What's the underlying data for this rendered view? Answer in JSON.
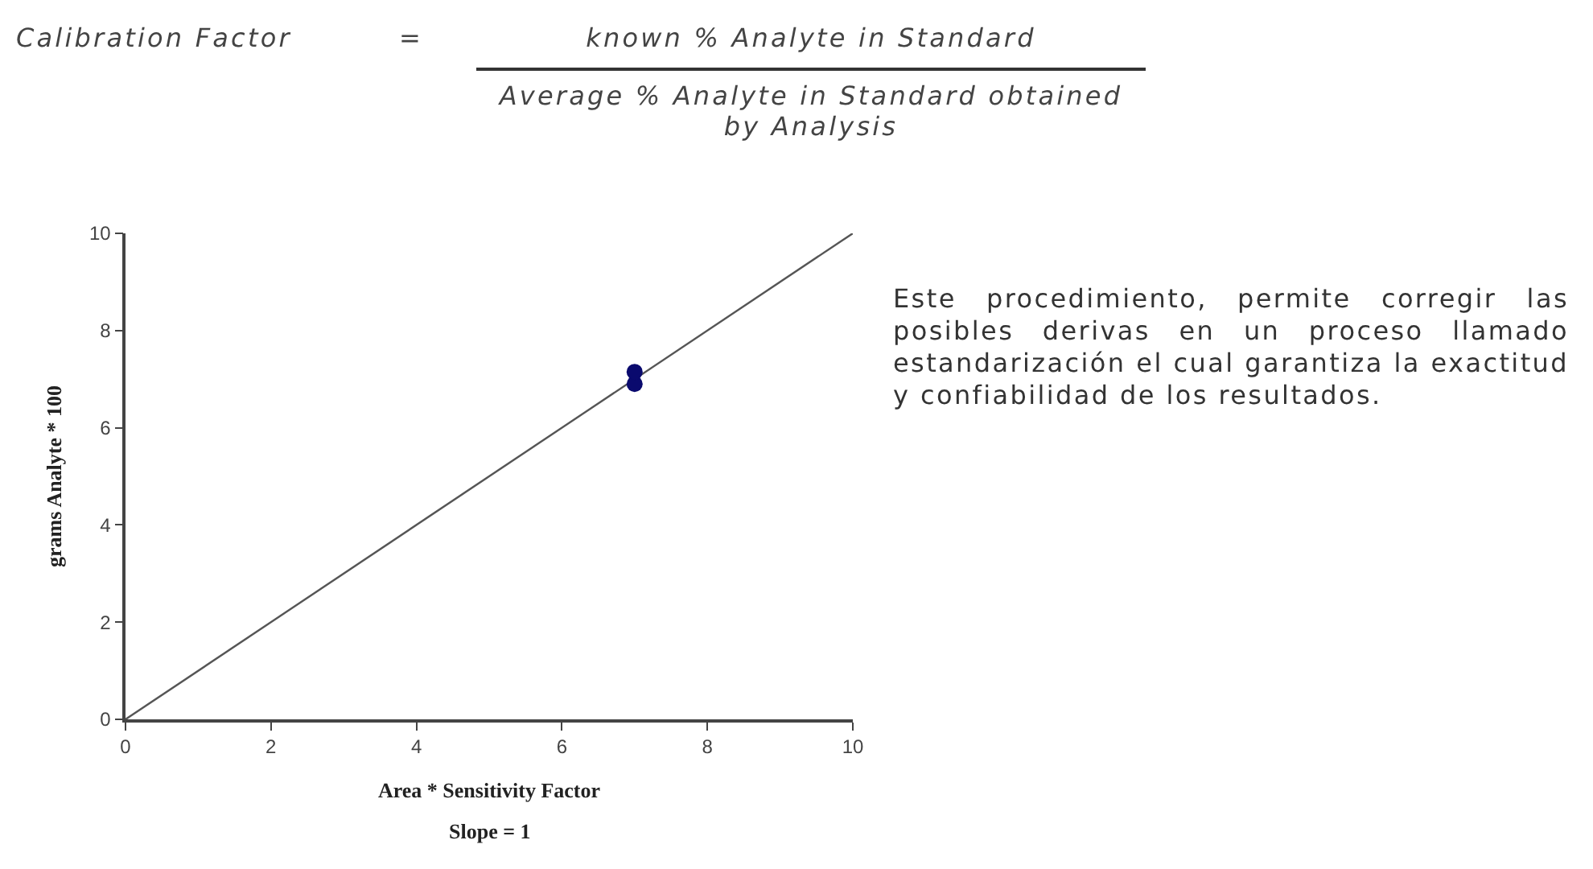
{
  "chart_data": {
    "type": "scatter",
    "xlabel": "Area * Sensitivity Factor",
    "ylabel": "grams Analyte * 100",
    "annotations": [
      "Calibration Factor",
      "=",
      "known % Analyte in Standard",
      "Average % Analyte in Standard obtained by Analysis",
      "Slope = 1",
      "Este procedimiento, permite corregir las posibles derivas en un proceso llamado estandarización el cual garantiza la exactitud y confiabilidad de los resultados."
    ],
    "series": [
      {
        "type": "line",
        "color": "#555555",
        "x": [
          0,
          10
        ],
        "values": [
          0,
          10
        ],
        "marker": "none",
        "line_style": "solid"
      },
      {
        "color": "#0a0a6e",
        "x": [
          7,
          7
        ],
        "values": [
          6.9,
          7.15
        ],
        "marker": "circle"
      }
    ],
    "xlim": [
      0,
      10
    ],
    "xticks": [
      0,
      2,
      4,
      6,
      8,
      10
    ],
    "ylim": [
      0,
      10
    ],
    "yticks": [
      0,
      2,
      4,
      6,
      8,
      10
    ],
    "grid": false
  }
}
